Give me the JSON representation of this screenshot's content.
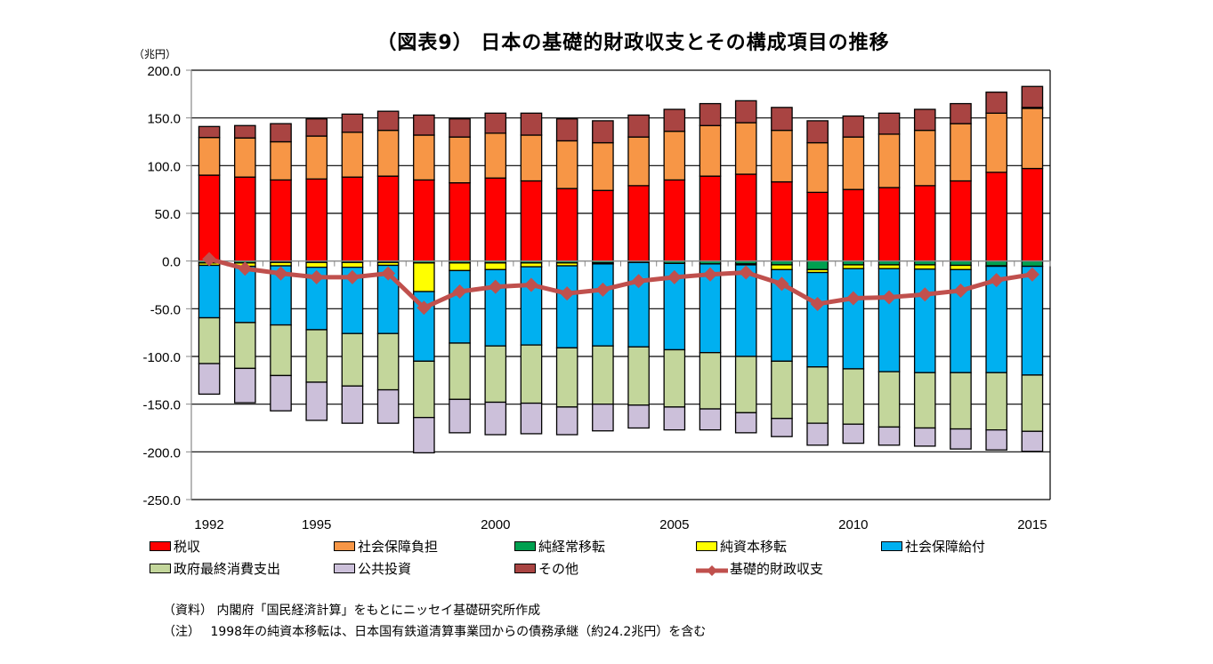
{
  "chart_data": {
    "type": "bar",
    "subtype": "stacked-bar-with-line",
    "title": "（図表9） 日本の基礎的財政収支とその構成項目の推移",
    "unit_label": "（兆円）",
    "xlabel": "",
    "ylabel": "兆円",
    "ylim": [
      -250,
      200
    ],
    "yticks": [
      200,
      150,
      100,
      50,
      0,
      -50,
      -100,
      -150,
      -200,
      -250
    ],
    "ytick_labels": [
      "200.0",
      "150.0",
      "100.0",
      "50.0",
      "0.0",
      "-50.0",
      "-100.0",
      "-150.0",
      "-200.0",
      "-250.0"
    ],
    "grid": true,
    "categories": [
      1992,
      1993,
      1994,
      1995,
      1996,
      1997,
      1998,
      1999,
      2000,
      2001,
      2002,
      2003,
      2004,
      2005,
      2006,
      2007,
      2008,
      2009,
      2010,
      2011,
      2012,
      2013,
      2014,
      2015
    ],
    "xtick_labels": [
      {
        "label": "1992",
        "index": 0
      },
      {
        "label": "1995",
        "index": 3
      },
      {
        "label": "2000",
        "index": 8
      },
      {
        "label": "2005",
        "index": 13
      },
      {
        "label": "2010",
        "index": 18
      },
      {
        "label": "2015",
        "index": 23
      }
    ],
    "series": [
      {
        "name": "税収",
        "color": "#ff0000",
        "kind": "bar",
        "values": [
          90,
          88,
          85,
          86,
          88,
          89,
          85,
          82,
          87,
          84,
          76,
          74,
          79,
          85,
          89,
          91,
          83,
          72,
          75,
          77,
          79,
          84,
          93,
          97
        ]
      },
      {
        "name": "社会保障負担",
        "color": "#f79646",
        "kind": "bar",
        "values": [
          39.5,
          41,
          40,
          45,
          47,
          48,
          47,
          48,
          47,
          48,
          50,
          50,
          51,
          51,
          53,
          54,
          54,
          52,
          55,
          56,
          58,
          60,
          62,
          63
        ]
      },
      {
        "name": "純経常移転",
        "color": "#00a050",
        "kind": "bar",
        "values": [
          -2,
          -2,
          -1.5,
          -1.5,
          -1.5,
          -1.5,
          -2,
          -2,
          -2,
          -2,
          -2,
          -2,
          -1.5,
          -2.5,
          -3,
          -3,
          -4,
          -9,
          -4,
          -4,
          -4,
          -4.5,
          -5,
          -5.5
        ]
      },
      {
        "name": "純資本移転",
        "color": "#ffff00",
        "kind": "bar",
        "values": [
          -2.5,
          -3.5,
          -3.5,
          -5,
          -5,
          -3,
          -30,
          -8,
          -7,
          -4,
          -3,
          -1,
          0,
          0,
          0,
          -1,
          -5,
          -3,
          -4,
          -4,
          -4.5,
          -4.5,
          -0.5,
          1
        ]
      },
      {
        "name": "社会保障給付",
        "color": "#00b0f0",
        "kind": "bar",
        "values": [
          -55,
          -59,
          -62,
          -65.5,
          -69.5,
          -71.5,
          -73,
          -76,
          -80,
          -82,
          -86,
          -86,
          -88.5,
          -90.5,
          -93,
          -96,
          -96,
          -99,
          -105,
          -108,
          -108.5,
          -108,
          -111.5,
          -114
        ]
      },
      {
        "name": "政府最終消費支出",
        "color": "#c3d69b",
        "kind": "bar",
        "values": [
          -48,
          -48,
          -53,
          -55,
          -55,
          -59,
          -59,
          -59,
          -59,
          -61,
          -62,
          -61,
          -61,
          -60,
          -59,
          -59,
          -60,
          -59,
          -58,
          -58,
          -58,
          -59,
          -60,
          -59
        ]
      },
      {
        "name": "公共投資",
        "color": "#ccc0da",
        "kind": "bar",
        "values": [
          -32,
          -36,
          -37,
          -40,
          -39,
          -35,
          -37,
          -35,
          -34,
          -32,
          -29,
          -28,
          -24,
          -24,
          -22,
          -21,
          -19,
          -23,
          -20,
          -19,
          -19,
          -21,
          -21,
          -21
        ]
      },
      {
        "name": "その他",
        "color": "#a94442",
        "kind": "bar",
        "values": [
          11.5,
          13,
          19,
          18,
          19,
          20,
          21,
          19,
          21,
          23,
          23,
          23,
          23,
          23,
          23,
          23,
          24,
          23,
          22,
          22,
          22,
          21,
          22,
          22
        ]
      },
      {
        "name": "基礎的財政収支",
        "color": "#c0504d",
        "kind": "line",
        "marker": "diamond",
        "values": [
          2,
          -8,
          -13,
          -17,
          -17,
          -13,
          -49,
          -32,
          -27,
          -25,
          -34,
          -30,
          -21,
          -17,
          -14,
          -12,
          -24,
          -45,
          -39,
          -38,
          -35,
          -31,
          -20,
          -14
        ]
      }
    ],
    "legend_position": "bottom",
    "legend": [
      "税収",
      "社会保障負担",
      "純経常移転",
      "純資本移転",
      "社会保障給付",
      "政府最終消費支出",
      "公共投資",
      "その他",
      "基礎的財政収支"
    ],
    "notes": [
      "（資料） 内閣府「国民経済計算」をもとにニッセイ基礎研究所作成",
      "（注）　 1998年の純資本移転は、日本国有鉄道清算事業団からの債務承継（約24.2兆円）を含む"
    ]
  }
}
